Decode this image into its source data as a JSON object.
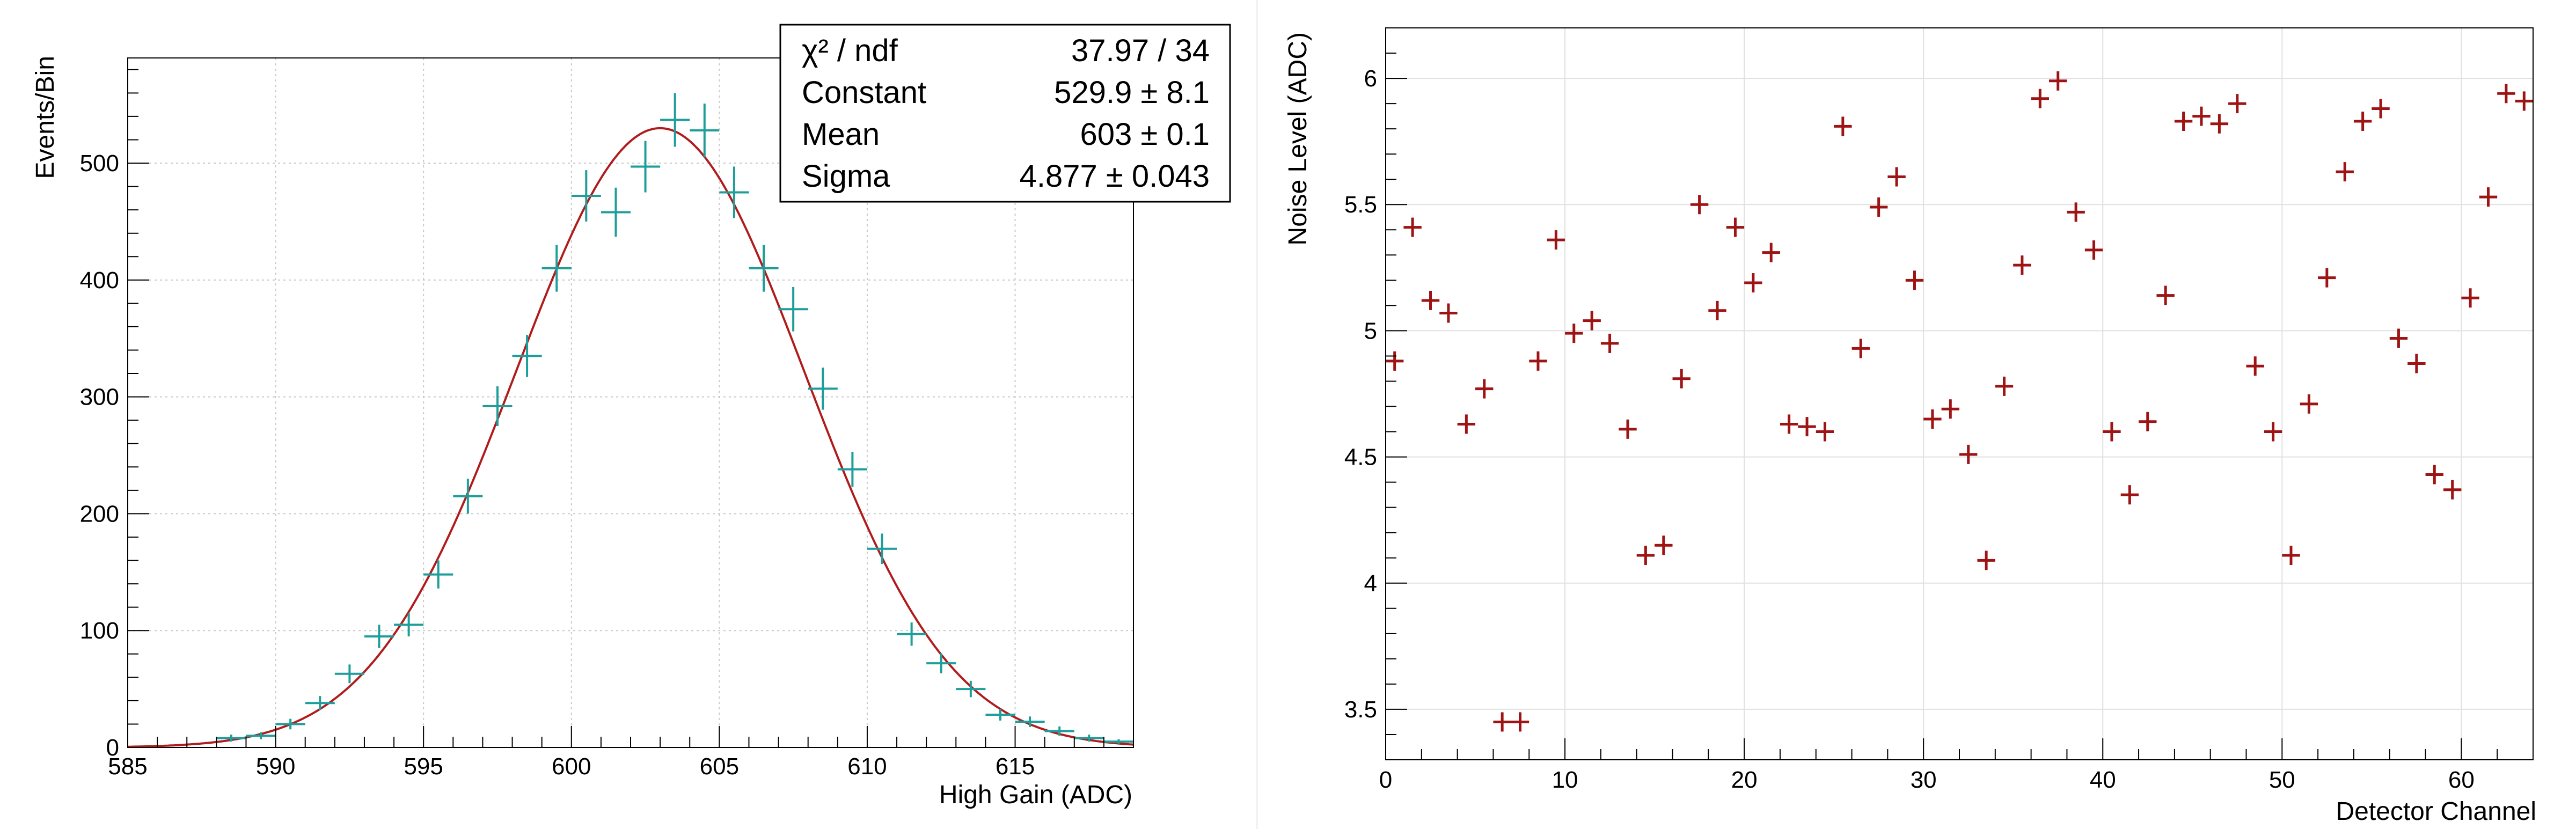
{
  "colors": {
    "left_markers": "#1e9e9a",
    "fit_curve": "#b01c1c",
    "right_markers": "#9e1414",
    "frame": "#000000",
    "grid": "#c8c8c8"
  },
  "chart_data": [
    {
      "type": "scatter",
      "title": "",
      "xlabel": "High Gain (ADC)",
      "ylabel": "Events/Bin",
      "xlim": [
        585,
        619
      ],
      "ylim": [
        0,
        590
      ],
      "xticks": [
        585,
        590,
        595,
        600,
        605,
        610,
        615
      ],
      "yticks": [
        0,
        100,
        200,
        300,
        400,
        500
      ],
      "grid": true,
      "bin_width": 1,
      "series": [
        {
          "x": [
            588.5,
            589.5,
            590.5,
            591.5,
            592.5,
            593.5,
            594.5,
            595.5,
            596.5,
            597.5,
            598.5,
            599.5,
            600.5,
            601.5,
            602.5,
            603.5,
            604.5,
            605.5,
            606.5,
            607.5,
            608.5,
            609.5,
            610.5,
            611.5,
            612.5,
            613.5,
            614.5,
            615.5,
            616.5,
            617.5,
            618.5
          ],
          "y": [
            8,
            10,
            20,
            38,
            63,
            95,
            105,
            148,
            215,
            292,
            335,
            410,
            472,
            458,
            497,
            537,
            528,
            475,
            410,
            375,
            307,
            238,
            170,
            97,
            72,
            50,
            28,
            22,
            14,
            8,
            5
          ],
          "errors": [
            3,
            3,
            4.5,
            6,
            8,
            10,
            10,
            12,
            15,
            17,
            18,
            20,
            22,
            21,
            22,
            23,
            23,
            22,
            20,
            19,
            18,
            15,
            13,
            10,
            8.5,
            7,
            5,
            4.5,
            4,
            3,
            2
          ]
        }
      ],
      "fit": {
        "function": "gaus",
        "constant": 529.9,
        "mean": 603,
        "sigma": 4.877
      },
      "stats_box": {
        "placement": "top-right",
        "rows": [
          {
            "label": "χ² / ndf",
            "value": "37.97 / 34"
          },
          {
            "label": "Constant",
            "value": "529.9 ± 8.1"
          },
          {
            "label": "Mean",
            "value": "603 ± 0.1"
          },
          {
            "label": "Sigma",
            "value": "4.877 ± 0.043"
          }
        ]
      }
    },
    {
      "type": "scatter",
      "title": "",
      "xlabel": "Detector Channel",
      "ylabel": "Noise Level (ADC)",
      "xlim": [
        0,
        64
      ],
      "ylim": [
        3.3,
        6.2
      ],
      "xticks": [
        0,
        10,
        20,
        30,
        40,
        50,
        60
      ],
      "yticks": [
        3.5,
        4,
        4.5,
        5,
        5.5,
        6
      ],
      "ytick_labels": [
        "3.5",
        "4",
        "4.5",
        "5",
        "5.5",
        "6"
      ],
      "grid": true,
      "series": [
        {
          "x": [
            0.5,
            1.5,
            2.5,
            3.5,
            4.5,
            5.5,
            6.5,
            7.5,
            8.5,
            9.5,
            10.5,
            11.5,
            12.5,
            13.5,
            14.5,
            15.5,
            16.5,
            17.5,
            18.5,
            19.5,
            20.5,
            21.5,
            22.5,
            23.5,
            24.5,
            25.5,
            26.5,
            27.5,
            28.5,
            29.5,
            30.5,
            31.5,
            32.5,
            33.5,
            34.5,
            35.5,
            36.5,
            37.5,
            38.5,
            39.5,
            40.5,
            41.5,
            42.5,
            43.5,
            44.5,
            45.5,
            46.5,
            47.5,
            48.5,
            49.5,
            50.5,
            51.5,
            52.5,
            53.5,
            54.5,
            55.5,
            56.5,
            57.5,
            58.5,
            59.5,
            60.5,
            61.5,
            62.5,
            63.5
          ],
          "y": [
            4.88,
            5.41,
            5.12,
            5.07,
            4.63,
            4.77,
            3.45,
            3.45,
            4.88,
            5.36,
            4.99,
            5.04,
            4.95,
            4.61,
            4.11,
            4.15,
            4.81,
            5.5,
            5.08,
            5.41,
            5.19,
            5.31,
            4.63,
            4.62,
            4.6,
            5.81,
            4.93,
            5.49,
            5.61,
            5.2,
            4.65,
            4.69,
            4.51,
            4.09,
            4.78,
            5.26,
            5.92,
            5.99,
            5.47,
            5.32,
            4.6,
            4.35,
            4.64,
            5.14,
            5.83,
            5.85,
            5.82,
            5.9,
            4.86,
            4.6,
            4.11,
            4.71,
            5.21,
            5.63,
            5.83,
            5.88,
            4.97,
            4.87,
            4.43,
            4.37,
            5.13,
            5.53,
            5.94,
            5.91
          ]
        }
      ]
    }
  ]
}
